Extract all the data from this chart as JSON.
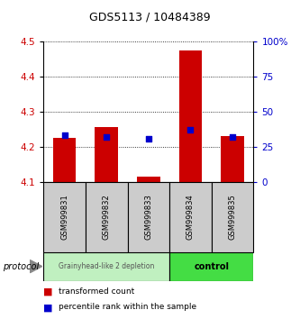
{
  "title": "GDS5113 / 10484389",
  "samples": [
    "GSM999831",
    "GSM999832",
    "GSM999833",
    "GSM999834",
    "GSM999835"
  ],
  "red_bar_tops": [
    4.225,
    4.255,
    4.115,
    4.475,
    4.23
  ],
  "blue_square_y": [
    4.232,
    4.228,
    4.222,
    4.248,
    4.228
  ],
  "bar_baseline": 4.1,
  "ylim": [
    4.1,
    4.5
  ],
  "yticks_left": [
    4.1,
    4.2,
    4.3,
    4.4,
    4.5
  ],
  "yticks_right": [
    0,
    25,
    50,
    75,
    100
  ],
  "yticks_right_labels": [
    "0",
    "25",
    "50",
    "75",
    "100%"
  ],
  "group1_samples": [
    0,
    1,
    2
  ],
  "group2_samples": [
    3,
    4
  ],
  "group1_label": "Grainyhead-like 2 depletion",
  "group2_label": "control",
  "group1_color": "#c0f0c0",
  "group2_color": "#44dd44",
  "protocol_label": "protocol",
  "red_color": "#cc0000",
  "blue_color": "#0000cc",
  "bar_width": 0.55,
  "blue_square_size": 25,
  "legend_red_label": "transformed count",
  "legend_blue_label": "percentile rank within the sample",
  "sample_box_color": "#cccccc",
  "title_fontsize": 9,
  "tick_fontsize": 7.5,
  "label_fontsize": 7
}
